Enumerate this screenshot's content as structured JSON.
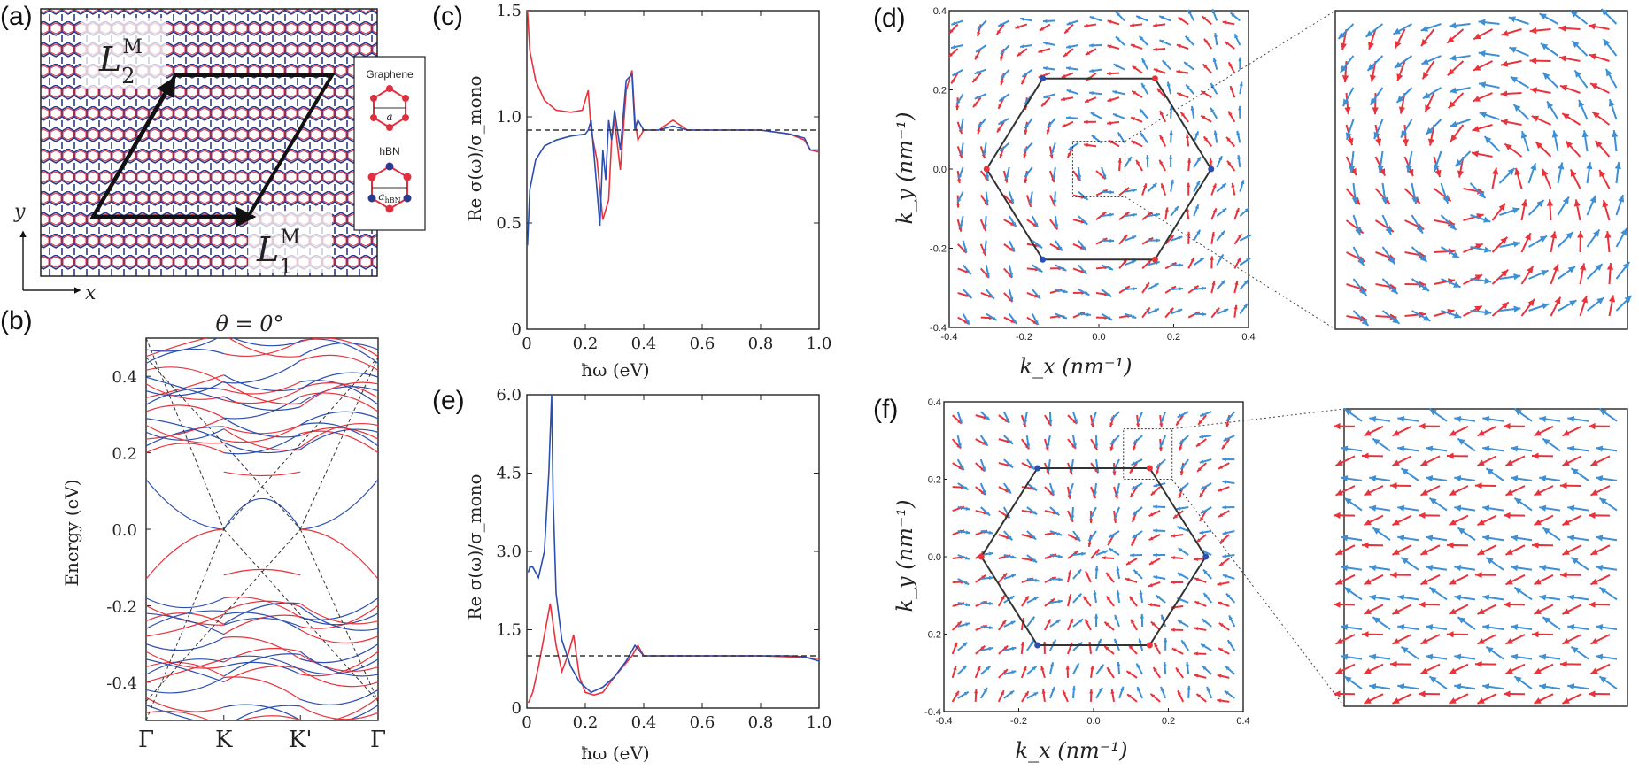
{
  "figure": {
    "panels": {
      "a": {
        "label": "(a)",
        "lattice_L1": "L",
        "lattice_L1_sub": "1",
        "lattice_L1_sup": "M",
        "lattice_L2": "L",
        "lattice_L2_sub": "2",
        "lattice_L2_sup": "M",
        "axis_x": "x",
        "axis_y": "y",
        "legend": {
          "graphene": "Graphene",
          "graphene_a": "a",
          "hbn": "hBN",
          "hbn_a": "a",
          "hbn_a_sub": "hBN"
        }
      },
      "b": {
        "label": "(b)",
        "title": "θ = 0°"
      },
      "c": {
        "label": "(c)"
      },
      "d": {
        "label": "(d)"
      },
      "e": {
        "label": "(e)"
      },
      "f": {
        "label": "(f)"
      }
    },
    "colors": {
      "red": "#e8333c",
      "blue": "#2b4fb0",
      "light_blue": "#3d8fd6",
      "dash": "#333333"
    }
  },
  "chart_data": [
    {
      "panel": "b",
      "type": "line",
      "title": "θ = 0°",
      "ylabel": "Energy (eV)",
      "xticks": [
        "Γ",
        "K",
        "K'",
        "Γ"
      ],
      "ylim": [
        -0.5,
        0.5
      ],
      "yticks": [
        "0.4",
        "0.2",
        "0.0",
        "-0.2",
        "-0.4"
      ],
      "series": [
        {
          "name": "graphene-red",
          "color": "red"
        },
        {
          "name": "hbn-blue",
          "color": "blue"
        },
        {
          "name": "monolayer-dashed",
          "color": "dash"
        }
      ]
    },
    {
      "panel": "c",
      "type": "line",
      "xlabel": "ħω (eV)",
      "ylabel": "Re σ(ω)/σ_mono",
      "xlim": [
        0,
        1.0
      ],
      "ylim": [
        0,
        1.6
      ],
      "xticks": [
        "0",
        "0.2",
        "0.4",
        "0.6",
        "0.8",
        "1.0"
      ],
      "yticks": [
        "0",
        "0.5",
        "1.0",
        "1.5"
      ],
      "series": [
        {
          "name": "red",
          "x": [
            0.002,
            0.01,
            0.03,
            0.06,
            0.1,
            0.15,
            0.19,
            0.21,
            0.22,
            0.24,
            0.25,
            0.26,
            0.27,
            0.28,
            0.29,
            0.3,
            0.32,
            0.34,
            0.36,
            0.37,
            0.38,
            0.4,
            0.45,
            0.5,
            0.55,
            0.6,
            0.7,
            0.8,
            0.9,
            0.95,
            0.97,
            1.0
          ],
          "y": [
            1.6,
            1.4,
            1.25,
            1.15,
            1.1,
            1.09,
            1.1,
            1.2,
            1.0,
            0.85,
            0.7,
            0.55,
            0.6,
            0.65,
            0.95,
            1.05,
            0.8,
            1.2,
            1.3,
            1.05,
            0.95,
            1.0,
            1.0,
            1.05,
            1.0,
            1.0,
            1.0,
            1.0,
            0.98,
            0.95,
            0.9,
            0.89
          ]
        },
        {
          "name": "blue",
          "x": [
            0.002,
            0.01,
            0.03,
            0.06,
            0.1,
            0.15,
            0.2,
            0.21,
            0.22,
            0.24,
            0.25,
            0.26,
            0.27,
            0.28,
            0.29,
            0.3,
            0.32,
            0.34,
            0.36,
            0.37,
            0.38,
            0.4,
            0.45,
            0.5,
            0.55,
            0.6,
            0.7,
            0.8,
            0.9,
            0.95,
            0.97,
            1.0
          ],
          "y": [
            0.42,
            0.7,
            0.85,
            0.92,
            0.95,
            0.97,
            0.98,
            1.0,
            1.05,
            0.7,
            0.52,
            0.9,
            0.75,
            1.05,
            0.95,
            1.1,
            0.9,
            1.25,
            1.28,
            1.0,
            1.05,
            1.0,
            1.0,
            1.02,
            1.0,
            1.0,
            1.0,
            1.0,
            0.98,
            0.96,
            0.9,
            0.9
          ]
        },
        {
          "name": "reference",
          "x": [
            0,
            1.0
          ],
          "y": [
            1.0,
            1.0
          ],
          "dashed": true
        }
      ]
    },
    {
      "panel": "e",
      "type": "line",
      "xlabel": "ħω (eV)",
      "ylabel": "Re σ(ω)/σ_mono",
      "xlim": [
        0,
        1.0
      ],
      "ylim": [
        0,
        6.0
      ],
      "xticks": [
        "0",
        "0.2",
        "0.4",
        "0.6",
        "0.8",
        "1.0"
      ],
      "yticks": [
        "0",
        "1.5",
        "3.0",
        "4.5",
        "6.0"
      ],
      "series": [
        {
          "name": "red",
          "x": [
            0.005,
            0.02,
            0.04,
            0.06,
            0.08,
            0.1,
            0.12,
            0.14,
            0.16,
            0.18,
            0.2,
            0.23,
            0.26,
            0.3,
            0.33,
            0.36,
            0.38,
            0.4,
            0.5,
            0.6,
            0.7,
            0.8,
            0.9,
            1.0
          ],
          "y": [
            0.1,
            0.3,
            0.8,
            1.4,
            2.0,
            1.2,
            0.7,
            1.0,
            1.4,
            0.6,
            0.3,
            0.25,
            0.3,
            0.6,
            0.8,
            1.0,
            1.2,
            1.0,
            1.0,
            1.0,
            1.0,
            1.0,
            0.98,
            0.95
          ]
        },
        {
          "name": "blue",
          "x": [
            0.005,
            0.01,
            0.02,
            0.04,
            0.06,
            0.075,
            0.085,
            0.09,
            0.1,
            0.12,
            0.15,
            0.18,
            0.22,
            0.26,
            0.3,
            0.34,
            0.37,
            0.4,
            0.5,
            0.6,
            0.7,
            0.8,
            0.9,
            0.95,
            1.0
          ],
          "y": [
            2.6,
            2.7,
            2.7,
            2.5,
            3.0,
            4.5,
            6.0,
            4.0,
            2.2,
            1.3,
            0.8,
            0.5,
            0.3,
            0.4,
            0.6,
            0.9,
            1.2,
            1.0,
            1.0,
            1.0,
            1.0,
            1.0,
            1.0,
            0.98,
            0.9
          ]
        },
        {
          "name": "reference",
          "x": [
            0,
            1.0
          ],
          "y": [
            1.0,
            1.0
          ],
          "dashed": true
        }
      ]
    },
    {
      "panel": "d",
      "type": "scatter",
      "xlabel": "k_x (nm⁻¹)",
      "ylabel": "k_y (nm⁻¹)",
      "xlim": [
        -0.4,
        0.4
      ],
      "ylim": [
        -0.4,
        0.4
      ],
      "xticks": [
        "-0.4",
        "-0.2",
        "0.0",
        "0.2",
        "0.4"
      ],
      "yticks": [
        "-0.4",
        "-0.2",
        "0.0",
        "0.2",
        "0.4"
      ],
      "pattern": "vortex",
      "hexagon_radius": 0.3
    },
    {
      "panel": "f",
      "type": "scatter",
      "xlabel": "k_x (nm⁻¹)",
      "ylabel": "k_y (nm⁻¹)",
      "xlim": [
        -0.4,
        0.4
      ],
      "ylim": [
        -0.4,
        0.4
      ],
      "xticks": [
        "-0.4",
        "-0.2",
        "0.0",
        "0.2",
        "0.4"
      ],
      "yticks": [
        "-0.4",
        "-0.2",
        "0.0",
        "0.2",
        "0.4"
      ],
      "pattern": "radial",
      "hexagon_radius": 0.3
    }
  ]
}
